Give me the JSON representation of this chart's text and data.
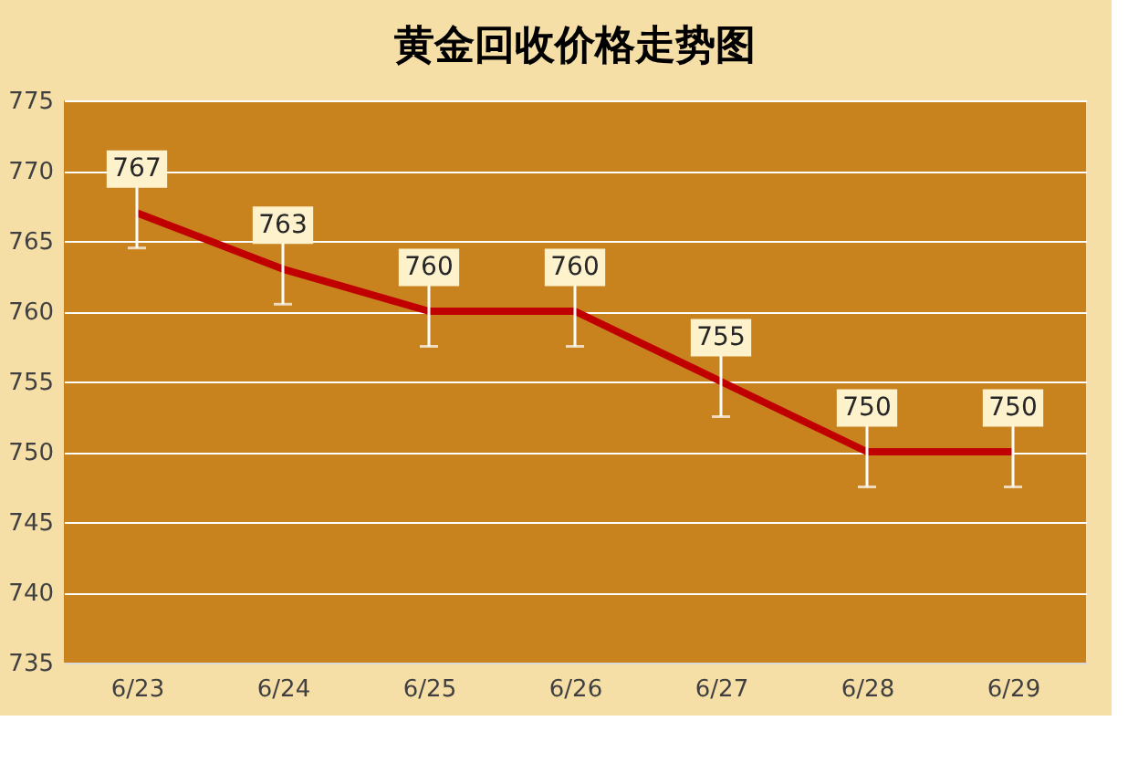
{
  "chart_data": {
    "type": "line",
    "title": "黄金回收价格走势图",
    "categories": [
      "6/23",
      "6/24",
      "6/25",
      "6/26",
      "6/27",
      "6/28",
      "6/29"
    ],
    "series": [
      {
        "color": "#c00000",
        "values": [
          767,
          763,
          760,
          760,
          755,
          750,
          750
        ],
        "errors": [
          2.5,
          2.5,
          2.5,
          2.5,
          2.5,
          2.5,
          2.5
        ]
      }
    ],
    "ylim": [
      735,
      775
    ],
    "yticks": [
      735,
      740,
      745,
      750,
      755,
      760,
      765,
      770,
      775
    ],
    "grid": "y",
    "data_labels": true,
    "marker": "none",
    "line_style": "solid"
  }
}
